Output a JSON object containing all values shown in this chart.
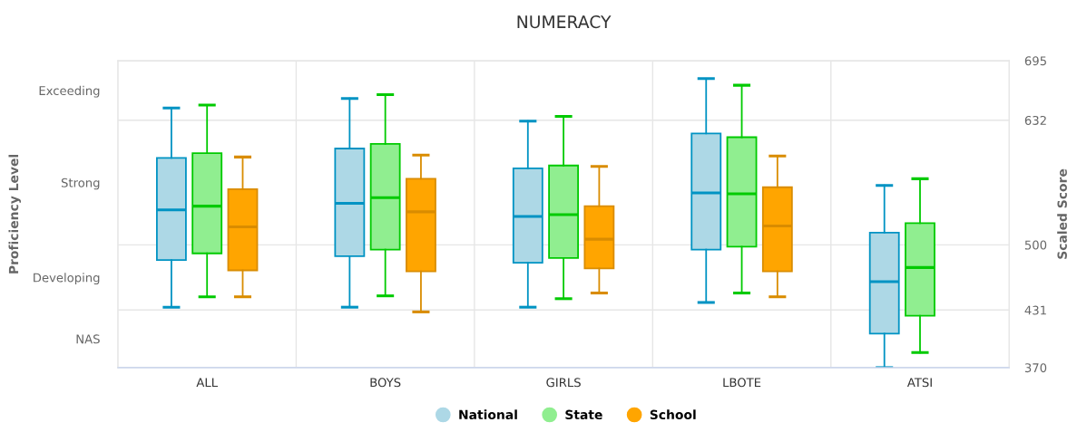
{
  "chart_data": {
    "type": "box",
    "title": "NUMERACY",
    "y2label": "Scaled Score",
    "categories": [
      "ALL",
      "BOYS",
      "GIRLS",
      "LBOTE",
      "ATSI"
    ],
    "y2lim": [
      370,
      695
    ],
    "y2ticks": [
      370,
      431,
      500,
      632,
      695
    ],
    "annotations": [
      "Exceeding",
      "Strong",
      "Developing",
      "NAS",
      "Proficiency Level"
    ],
    "grid": true,
    "legend": "bottom",
    "marker": "circle",
    "series": [
      {
        "name": "National",
        "color": "#add8e6",
        "axis": "y2",
        "boxes": [
          {
            "low": 434,
            "q1": 484,
            "median": 537,
            "q3": 592,
            "high": 645
          },
          {
            "low": 434,
            "q1": 488,
            "median": 544,
            "q3": 602,
            "high": 655
          },
          {
            "low": 434,
            "q1": 481,
            "median": 530,
            "q3": 581,
            "high": 631
          },
          {
            "low": 439,
            "q1": 495,
            "median": 555,
            "q3": 618,
            "high": 676
          },
          {
            "low": 370,
            "q1": 406,
            "median": 461,
            "q3": 513,
            "high": 563
          }
        ]
      },
      {
        "name": "State",
        "color": "#90ee90",
        "axis": "y2",
        "boxes": [
          {
            "low": 445,
            "q1": 491,
            "median": 541,
            "q3": 597,
            "high": 648
          },
          {
            "low": 446,
            "q1": 495,
            "median": 550,
            "q3": 607,
            "high": 659
          },
          {
            "low": 443,
            "q1": 486,
            "median": 532,
            "q3": 584,
            "high": 636
          },
          {
            "low": 449,
            "q1": 498,
            "median": 554,
            "q3": 614,
            "high": 669
          },
          {
            "low": 386,
            "q1": 425,
            "median": 476,
            "q3": 523,
            "high": 570
          }
        ]
      },
      {
        "name": "School",
        "color": "#ffa500",
        "axis": "y2",
        "boxes": [
          {
            "low": 445,
            "q1": 473,
            "median": 519,
            "q3": 559,
            "high": 593
          },
          {
            "low": 429,
            "q1": 472,
            "median": 535,
            "q3": 570,
            "high": 595
          },
          {
            "low": 449,
            "q1": 475,
            "median": 506,
            "q3": 541,
            "high": 583
          },
          {
            "low": 445,
            "q1": 472,
            "median": 520,
            "q3": 561,
            "high": 594
          },
          null
        ]
      }
    ]
  }
}
